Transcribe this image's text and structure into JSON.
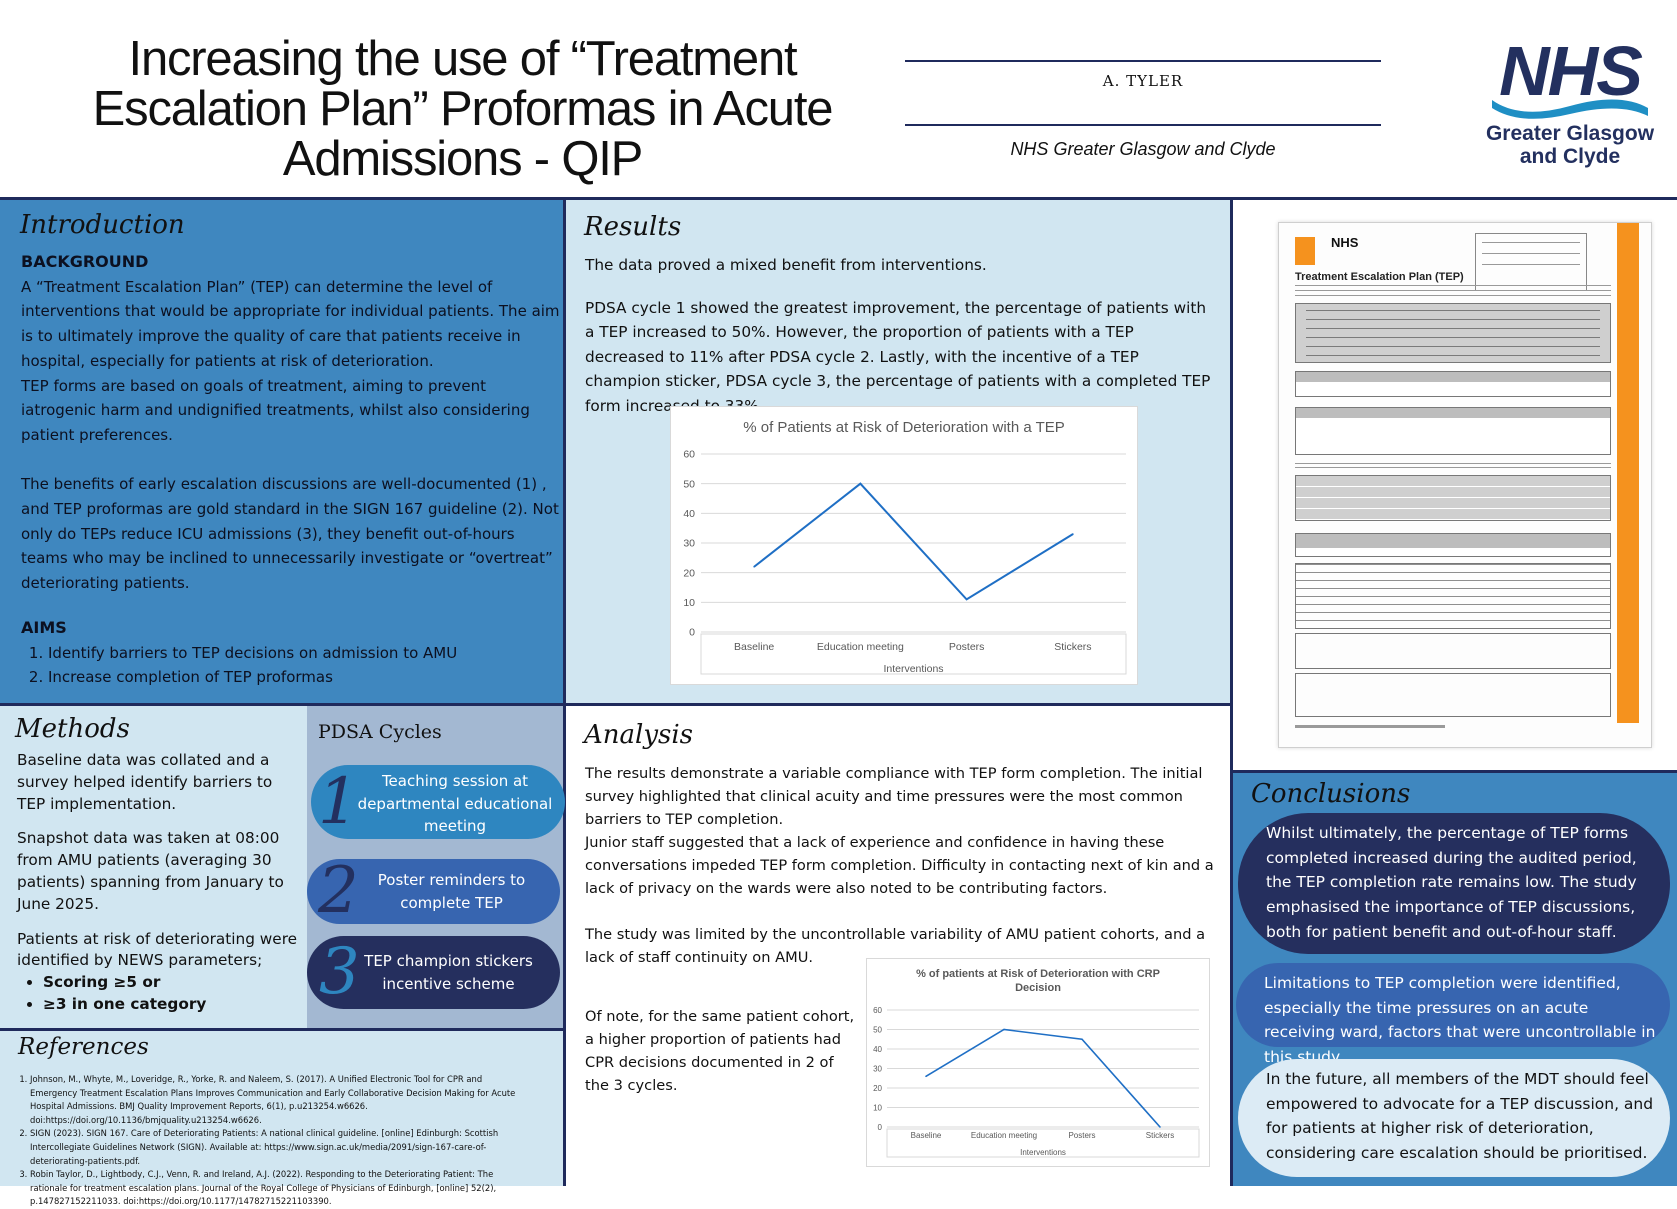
{
  "header": {
    "title_lines": [
      "Increasing the use of “Treatment",
      "Escalation Plan” Proformas in Acute",
      "Admissions - QIP"
    ],
    "author": "A. TYLER",
    "organisation": "NHS Greater Glasgow and Clyde",
    "logo": {
      "word": "NHS",
      "sub_lines": [
        "Greater Glasgow",
        "and Clyde"
      ],
      "color": "#23305f",
      "wave_color": "#1f8fc4"
    }
  },
  "introduction": {
    "title": "Introduction",
    "background_heading": "BACKGROUND",
    "para1": "A “Treatment Escalation Plan” (TEP) can determine the level of interventions that would be appropriate for individual patients. The aim is to ultimately improve the quality of care that patients receive in hospital, especially for patients at risk of deterioration.",
    "para2": "TEP forms are based on goals of treatment, aiming to prevent iatrogenic harm and undignified treatments, whilst also considering patient preferences.",
    "para3": "The benefits of early escalation discussions are well-documented (1) , and TEP proformas are gold standard in the SIGN 167 guideline (2). Not only do TEPs reduce ICU admissions (3), they benefit out-of-hours teams who may be inclined to unnecessarily investigate or “overtreat” deteriorating patients.",
    "aims_heading": "AIMS",
    "aims": [
      "Identify barriers to TEP decisions on admission to AMU",
      "Increase completion of TEP proformas"
    ]
  },
  "results": {
    "title": "Results",
    "para1": "The data proved a mixed benefit from interventions.",
    "para2": "PDSA cycle 1 showed the greatest improvement, the percentage of patients with a TEP increased to 50%. However, the proportion of patients with a TEP decreased to 11% after PDSA cycle 2. Lastly, with the incentive of a TEP champion sticker, PDSA cycle 3, the percentage of patients with a completed TEP form increased to 33%."
  },
  "chart_data": [
    {
      "type": "line",
      "title": "% of Patients at Risk of Deterioration with a TEP",
      "categories": [
        "Baseline",
        "Education meeting",
        "Posters",
        "Stickers"
      ],
      "values": [
        22,
        50,
        11,
        33
      ],
      "xlabel": "Interventions",
      "ylabel": "",
      "ylim": [
        0,
        60
      ],
      "yticks": [
        0,
        10,
        20,
        30,
        40,
        50,
        60
      ],
      "grid": true,
      "line_color": "#1f6fc5"
    },
    {
      "type": "line",
      "title_lines": [
        "% of patients at Risk of Deterioration with CRP",
        "Decision"
      ],
      "categories": [
        "Baseline",
        "Education meeting",
        "Posters",
        "Stickers"
      ],
      "values": [
        26,
        50,
        45,
        0
      ],
      "xlabel": "Interventions",
      "ylabel": "",
      "ylim": [
        0,
        60
      ],
      "yticks": [
        0,
        10,
        20,
        30,
        40,
        50,
        60
      ],
      "grid": true,
      "line_color": "#1f6fc5"
    }
  ],
  "methods": {
    "title": "Methods",
    "para1": "Baseline data was collated and a survey helped identify barriers to TEP implementation.",
    "para2": "Snapshot data was taken at 08:00 from AMU patients (averaging 30 patients)  spanning from January to June 2025.",
    "para3": "Patients at risk of deteriorating were identified by NEWS parameters;",
    "criteria": [
      "Scoring ≥5 or",
      "≥3 in one category"
    ]
  },
  "pdsa": {
    "title": "PDSA Cycles",
    "cycles": [
      {
        "number": "1",
        "text": "Teaching session at departmental educational meeting",
        "color": "#2e86c0",
        "num_color": "#23305f"
      },
      {
        "number": "2",
        "text": "Poster reminders to complete TEP",
        "color": "#3765b0",
        "num_color": "#23305f"
      },
      {
        "number": "3",
        "text": "TEP champion stickers incentive scheme",
        "color": "#252f5e",
        "num_color": "#2e86c0"
      }
    ]
  },
  "references": {
    "title": "References",
    "items": [
      "Johnson, M., Whyte, M., Loveridge, R., Yorke, R. and Naleem, S. (2017). A Unified Electronic Tool for CPR and Emergency Treatment Escalation Plans Improves Communication and Early Collaborative Decision Making for Acute Hospital Admissions. BMJ Quality Improvement Reports, 6(1), p.u213254.w6626. doi:https://doi.org/10.1136/bmjquality.u213254.w6626.",
      "SIGN (2023). SIGN 167. Care of Deteriorating Patients: A national clinical guideline. [online] Edinburgh: Scottish Intercollegiate Guidelines Network (SIGN). Available at: https://www.sign.ac.uk/media/2091/sign-167-care-of-deteriorating-patients.pdf.",
      "Robin Taylor, D., Lightbody, C.J., Venn, R. and Ireland, A.J. (2022). Responding to the Deteriorating Patient: The rationale for treatment escalation plans. Journal of the Royal College of Physicians of Edinburgh, [online] 52(2), p.147827152211033. doi:https://doi.org/10.1177/14782715221103390."
    ]
  },
  "analysis": {
    "title": "Analysis",
    "para1": "The results demonstrate a variable compliance with TEP form completion. The initial survey highlighted that clinical acuity and time pressures were the most common barriers to TEP completion.",
    "para2": "Junior staff suggested that a lack of experience and confidence in having these conversations impeded TEP form completion. Difficulty in contacting next of kin and a lack of privacy on the wards were also noted to be contributing factors.",
    "para3": "The study was limited by the uncontrollable variability of AMU patient cohorts, and a lack of staff continuity on AMU.",
    "para4": "Of note, for the same patient cohort, a higher proportion of patients had CPR decisions documented in 2 of the 3 cycles."
  },
  "conclusions": {
    "title": "Conclusions",
    "points": [
      {
        "text": "Whilst ultimately, the percentage of TEP forms completed increased during the audited period, the TEP completion rate remains low. The study emphasised the importance of TEP discussions, both for patient benefit and out-of-hour staff.",
        "color": "#252f5e",
        "text_color": "#ffffff"
      },
      {
        "text": "Limitations to TEP completion were identified, especially the time pressures on an acute receiving ward, factors that were uncontrollable in this study.",
        "color": "#3765b0",
        "text_color": "#ffffff"
      },
      {
        "text": "In the future, all members of the MDT should feel empowered to advocate for a TEP discussion, and for patients at higher risk of deterioration, considering care escalation should be prioritised.",
        "color": "#dcebf5",
        "text_color": "#111111"
      }
    ]
  },
  "tep_form": {
    "logo": "NHS",
    "title": "Treatment Escalation Plan (TEP)",
    "accent_color": "#f5921e"
  }
}
